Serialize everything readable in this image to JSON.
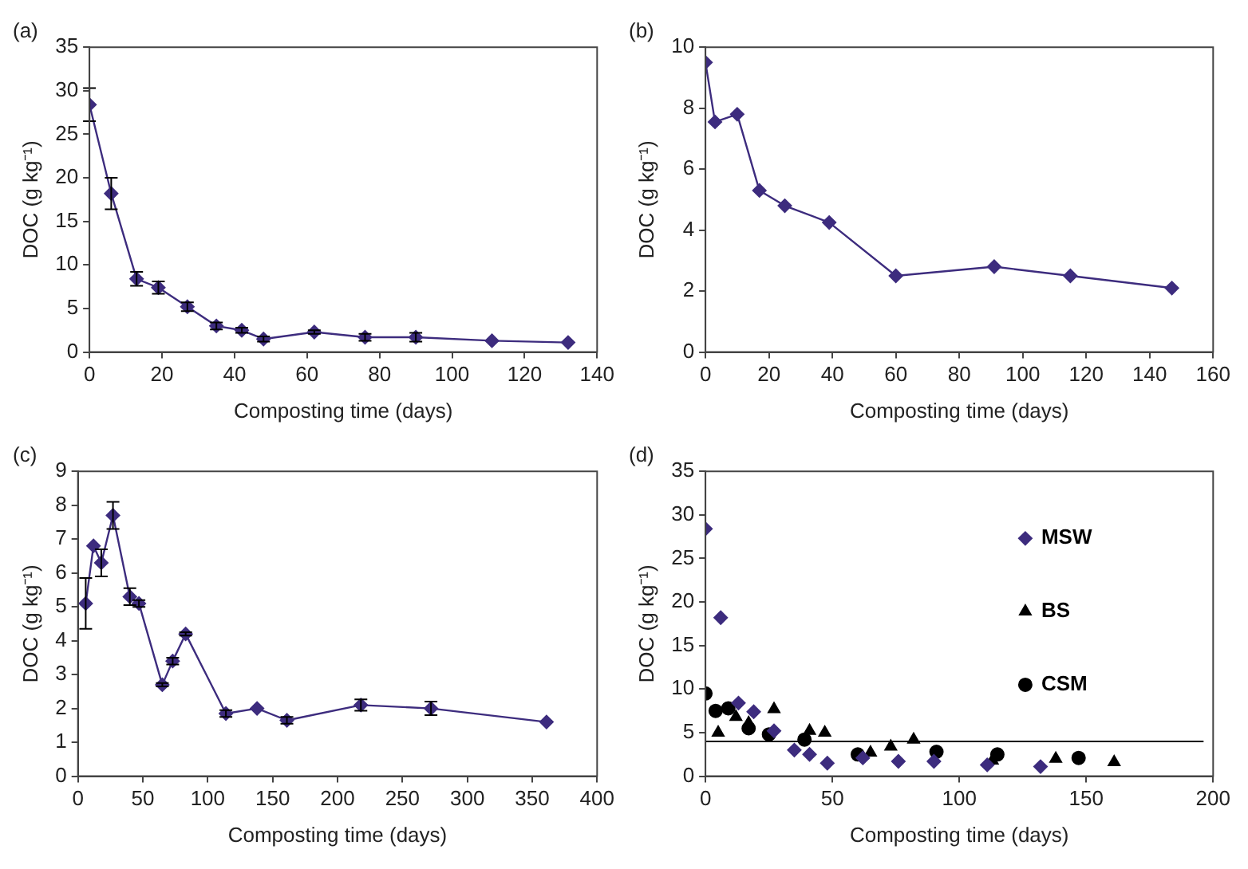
{
  "chart_data": [
    {
      "type": "line",
      "title": "(a)",
      "xlabel": "Composting time (days)",
      "ylabel": "DOC (g kg⁻¹)",
      "xlim": [
        0,
        140
      ],
      "xticks": [
        0,
        20,
        40,
        60,
        80,
        100,
        120,
        140
      ],
      "ylim": [
        0,
        35
      ],
      "yticks": [
        0,
        5,
        10,
        15,
        20,
        25,
        30,
        35
      ],
      "marker": "diamond",
      "series": [
        {
          "color": "#3d2c7e",
          "x": [
            0,
            6,
            13,
            19,
            27,
            35,
            42,
            48,
            62,
            76,
            90,
            111,
            132
          ],
          "values": [
            28.4,
            18.2,
            8.4,
            7.4,
            5.2,
            3.0,
            2.5,
            1.5,
            2.3,
            1.7,
            1.7,
            1.3,
            1.1
          ],
          "errors": [
            1.9,
            1.8,
            0.8,
            0.7,
            0.5,
            0.4,
            0.3,
            0.3,
            0.2,
            0.4,
            0.5,
            null,
            null
          ]
        }
      ]
    },
    {
      "type": "line",
      "title": "(b)",
      "xlabel": "Composting time (days)",
      "ylabel": "DOC (g kg⁻¹)",
      "xlim": [
        0,
        160
      ],
      "xticks": [
        0,
        20,
        40,
        60,
        80,
        100,
        120,
        140,
        160
      ],
      "ylim": [
        0,
        10
      ],
      "yticks": [
        0,
        2,
        4,
        6,
        8,
        10
      ],
      "marker": "diamond",
      "series": [
        {
          "color": "#3d2c7e",
          "x": [
            0,
            3,
            10,
            17,
            25,
            39,
            60,
            91,
            115,
            147
          ],
          "values": [
            9.5,
            7.55,
            7.8,
            5.3,
            4.8,
            4.25,
            2.5,
            2.8,
            2.5,
            2.1
          ]
        }
      ]
    },
    {
      "type": "line",
      "title": "(c)",
      "xlabel": "Composting time (days)",
      "ylabel": "DOC (g kg⁻¹)",
      "xlim": [
        0,
        400
      ],
      "xticks": [
        0,
        50,
        100,
        150,
        200,
        250,
        300,
        350,
        400
      ],
      "ylim": [
        0,
        9
      ],
      "yticks": [
        0,
        1,
        2,
        3,
        4,
        5,
        6,
        7,
        8,
        9
      ],
      "marker": "diamond",
      "series": [
        {
          "color": "#3d2c7e",
          "x": [
            6,
            12,
            18,
            27,
            40,
            47,
            65,
            73,
            83,
            114,
            138,
            161,
            218,
            272,
            361
          ],
          "values": [
            5.1,
            6.8,
            6.3,
            7.7,
            5.3,
            5.1,
            2.7,
            3.4,
            4.2,
            1.85,
            2.0,
            1.65,
            2.1,
            2.0,
            1.6
          ],
          "errors": [
            0.75,
            null,
            0.4,
            0.4,
            0.25,
            0.1,
            0.05,
            0.1,
            0.05,
            0.1,
            null,
            0.1,
            0.17,
            0.2,
            null
          ]
        }
      ]
    },
    {
      "type": "scatter",
      "title": "(d)",
      "xlabel": "Composting time (days)",
      "ylabel": "DOC (g kg⁻¹)",
      "xlim": [
        0,
        200
      ],
      "xticks": [
        0,
        50,
        100,
        150,
        200
      ],
      "ylim": [
        0,
        35
      ],
      "yticks": [
        0,
        5,
        10,
        15,
        20,
        25,
        30,
        35
      ],
      "legend": "top right",
      "ref_lines": [
        {
          "axis": "y",
          "value": 4,
          "color": "#000000"
        }
      ],
      "series": [
        {
          "name": "MSW",
          "color": "#3d2c7e",
          "marker": "diamond",
          "x": [
            0,
            6,
            13,
            19,
            27,
            35,
            41,
            48,
            62,
            76,
            90,
            111,
            132
          ],
          "values": [
            28.4,
            18.2,
            8.4,
            7.4,
            5.2,
            3.0,
            2.5,
            1.5,
            2.1,
            1.7,
            1.7,
            1.3,
            1.1
          ]
        },
        {
          "name": "BS",
          "color": "#000000",
          "marker": "triangle",
          "x": [
            5,
            12,
            17,
            27,
            41,
            47,
            65,
            73,
            82,
            113,
            138,
            161
          ],
          "values": [
            5.0,
            6.8,
            6.1,
            7.7,
            5.2,
            5.0,
            2.7,
            3.4,
            4.2,
            1.8,
            2.0,
            1.6
          ]
        },
        {
          "name": "CSM",
          "color": "#000000",
          "marker": "circle",
          "x": [
            0,
            4,
            9,
            17,
            25,
            39,
            60,
            91,
            115,
            147
          ],
          "values": [
            9.5,
            7.5,
            7.8,
            5.5,
            4.8,
            4.2,
            2.5,
            2.8,
            2.5,
            2.1
          ]
        }
      ]
    }
  ]
}
